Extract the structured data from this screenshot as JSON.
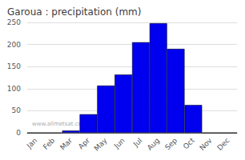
{
  "chart_data": {
    "type": "bar",
    "title": "Garoua : precipitation (mm)",
    "categories": [
      "Jan",
      "Feb",
      "Mar",
      "Apr",
      "May",
      "Jun",
      "Jul",
      "Aug",
      "Sep",
      "Oct",
      "Nov",
      "Dec"
    ],
    "values": [
      0,
      0,
      5,
      42,
      107,
      132,
      205,
      248,
      190,
      63,
      0,
      0
    ],
    "color": "#0000ee",
    "ylim": [
      0,
      250
    ],
    "yticks": [
      0,
      50,
      100,
      150,
      200,
      250
    ],
    "grid": true,
    "annotations": [
      "www.allmetsat.com"
    ]
  }
}
